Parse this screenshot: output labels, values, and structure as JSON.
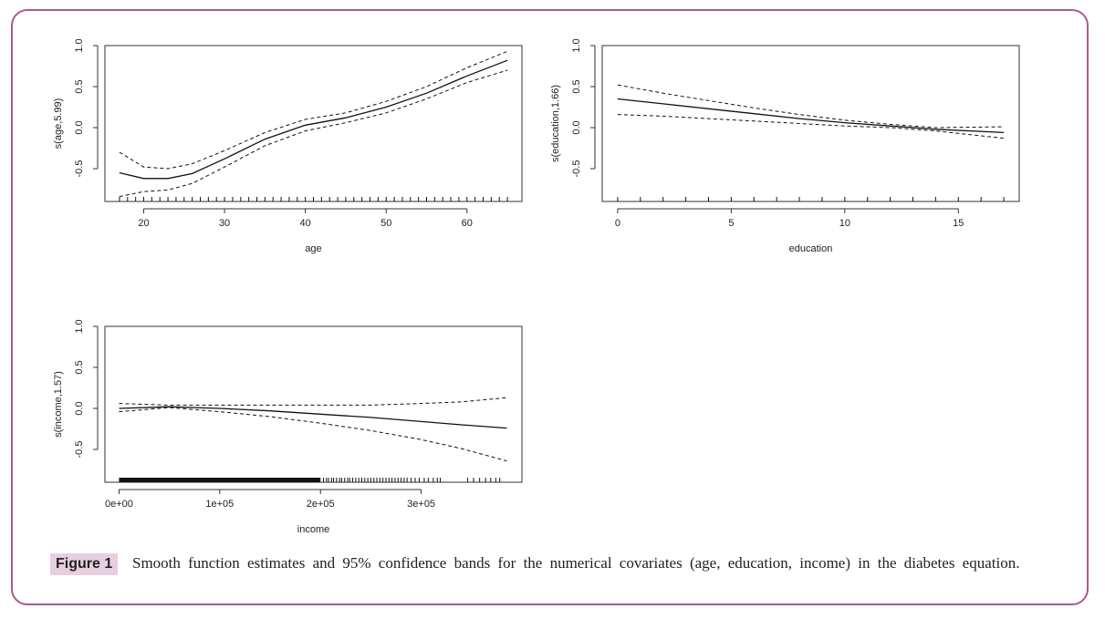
{
  "chart_data": [
    {
      "type": "line",
      "xlabel": "age",
      "ylabel": "s(age,5.99)",
      "xlim": [
        15.2,
        66.8
      ],
      "ylim": [
        -0.9,
        1.0
      ],
      "xticks": [
        "20",
        "30",
        "40",
        "50",
        "60"
      ],
      "xtick_values": [
        20,
        30,
        40,
        50,
        60
      ],
      "yticks": [
        "-0.5",
        "0.0",
        "0.5",
        "1.0"
      ],
      "ytick_values": [
        -0.5,
        0.0,
        0.5,
        1.0
      ],
      "x": [
        17,
        20,
        23,
        26,
        30,
        35,
        40,
        45,
        50,
        55,
        60,
        65
      ],
      "series": [
        {
          "name": "estimate",
          "style": "solid",
          "values": [
            -0.55,
            -0.62,
            -0.62,
            -0.56,
            -0.38,
            -0.14,
            0.03,
            0.12,
            0.25,
            0.42,
            0.63,
            0.82
          ]
        },
        {
          "name": "upper 95% band",
          "style": "dashed",
          "values": [
            -0.3,
            -0.48,
            -0.5,
            -0.44,
            -0.28,
            -0.06,
            0.1,
            0.18,
            0.32,
            0.5,
            0.73,
            0.93
          ]
        },
        {
          "name": "lower 95% band",
          "style": "dashed",
          "values": [
            -0.84,
            -0.78,
            -0.76,
            -0.68,
            -0.48,
            -0.22,
            -0.04,
            0.06,
            0.18,
            0.35,
            0.55,
            0.7
          ]
        }
      ],
      "rug": [
        17,
        18,
        19,
        20,
        21,
        22,
        23,
        24,
        25,
        26,
        27,
        28,
        29,
        30,
        31,
        32,
        33,
        34,
        35,
        36,
        37,
        38,
        39,
        40,
        41,
        42,
        43,
        44,
        45,
        46,
        47,
        48,
        49,
        50,
        51,
        52,
        53,
        54,
        55,
        56,
        57,
        58,
        59,
        60,
        61,
        62,
        63,
        64,
        65
      ]
    },
    {
      "type": "line",
      "xlabel": "education",
      "ylabel": "s(education,1.66)",
      "xlim": [
        -0.68,
        17.68
      ],
      "ylim": [
        -0.9,
        1.0
      ],
      "xticks": [
        "0",
        "5",
        "10",
        "15"
      ],
      "xtick_values": [
        0,
        5,
        10,
        15
      ],
      "yticks": [
        "-0.5",
        "0.0",
        "0.5",
        "1.0"
      ],
      "ytick_values": [
        -0.5,
        0.0,
        0.5,
        1.0
      ],
      "x": [
        0,
        2,
        4,
        6,
        8,
        10,
        12,
        14,
        17
      ],
      "series": [
        {
          "name": "estimate",
          "style": "solid",
          "values": [
            0.35,
            0.29,
            0.23,
            0.17,
            0.11,
            0.06,
            0.02,
            -0.02,
            -0.06
          ]
        },
        {
          "name": "upper 95% band",
          "style": "dashed",
          "values": [
            0.52,
            0.42,
            0.33,
            0.24,
            0.16,
            0.09,
            0.04,
            0.0,
            0.01
          ]
        },
        {
          "name": "lower 95% band",
          "style": "dashed",
          "values": [
            0.16,
            0.14,
            0.11,
            0.08,
            0.05,
            0.02,
            0.0,
            -0.04,
            -0.13
          ]
        }
      ],
      "rug": [
        0,
        1,
        2,
        3,
        4,
        5,
        6,
        7,
        8,
        9,
        10,
        11,
        12,
        13,
        14,
        15,
        16,
        17
      ]
    },
    {
      "type": "line",
      "xlabel": "income",
      "ylabel": "s(income,1.57)",
      "xlim": [
        -14000,
        400000
      ],
      "ylim": [
        -0.9,
        1.0
      ],
      "xticks": [
        "0e+00",
        "1e+05",
        "2e+05",
        "3e+05"
      ],
      "xtick_values": [
        0,
        100000,
        200000,
        300000
      ],
      "yticks": [
        "-0.5",
        "0.0",
        "0.5",
        "1.0"
      ],
      "ytick_values": [
        -0.5,
        0.0,
        0.5,
        1.0
      ],
      "x": [
        0,
        50000,
        100000,
        150000,
        200000,
        250000,
        300000,
        340000,
        385000
      ],
      "series": [
        {
          "name": "estimate",
          "style": "solid",
          "values": [
            0.0,
            0.02,
            0.0,
            -0.03,
            -0.07,
            -0.11,
            -0.16,
            -0.2,
            -0.24
          ]
        },
        {
          "name": "upper 95% band",
          "style": "dashed",
          "values": [
            0.06,
            0.04,
            0.04,
            0.04,
            0.04,
            0.04,
            0.06,
            0.08,
            0.13
          ]
        },
        {
          "name": "lower 95% band",
          "style": "dashed",
          "values": [
            -0.04,
            0.01,
            -0.04,
            -0.1,
            -0.18,
            -0.27,
            -0.38,
            -0.49,
            -0.64
          ]
        }
      ],
      "rug_dense_range": [
        0,
        200000
      ],
      "rug": [
        203000,
        206000,
        208000,
        211000,
        213000,
        216000,
        219000,
        221000,
        224000,
        227000,
        229000,
        232000,
        235000,
        238000,
        241000,
        244000,
        247000,
        250000,
        253000,
        256000,
        259000,
        262000,
        265000,
        268000,
        271000,
        274000,
        277000,
        280000,
        283000,
        286000,
        290000,
        294000,
        298000,
        303000,
        307000,
        312000,
        316000,
        319000,
        346000,
        352000,
        358000,
        364000,
        369000,
        374000,
        378000
      ]
    }
  ],
  "caption": {
    "label": "Figure 1",
    "text": "Smooth function estimates  and 95% confidence bands for the numerical covariates (age,  education, income) in the diabetes equation."
  }
}
